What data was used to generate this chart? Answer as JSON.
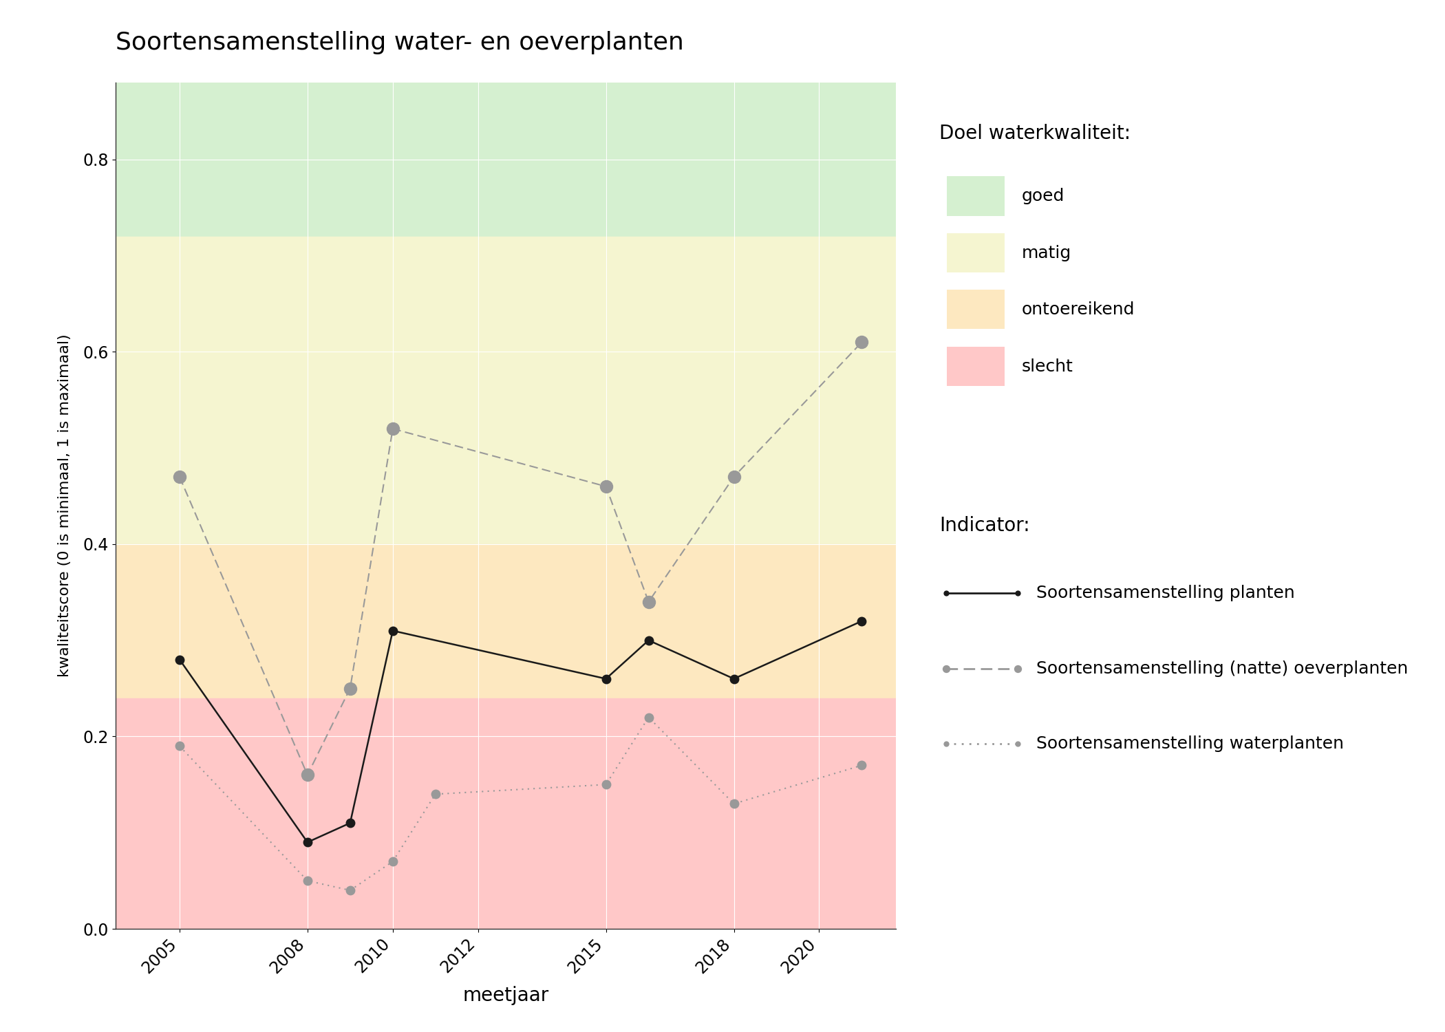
{
  "title": "Soortensamenstelling water- en oeverplanten",
  "xlabel": "meetjaar",
  "ylabel": "kwaliteitscore (0 is minimaal, 1 is maximaal)",
  "xlim": [
    2003.5,
    2021.8
  ],
  "ylim": [
    0.0,
    0.88
  ],
  "yticks": [
    0.0,
    0.2,
    0.4,
    0.6,
    0.8
  ],
  "xticks": [
    2005,
    2008,
    2010,
    2012,
    2015,
    2018,
    2020
  ],
  "background_color": "#ffffff",
  "zone_colors": {
    "goed": "#d5f0d0",
    "matig": "#f5f5d0",
    "ontoereikend": "#fde8c0",
    "slecht": "#ffc8c8"
  },
  "zone_bounds": {
    "goed_min": 0.72,
    "goed_max": 0.88,
    "matig_min": 0.4,
    "matig_max": 0.72,
    "ontoereikend_min": 0.24,
    "ontoereikend_max": 0.4,
    "slecht_min": 0.0,
    "slecht_max": 0.24
  },
  "line_planten": {
    "x": [
      2005,
      2008,
      2009,
      2010,
      2015,
      2016,
      2018,
      2021
    ],
    "y": [
      0.28,
      0.09,
      0.11,
      0.31,
      0.26,
      0.3,
      0.26,
      0.32
    ],
    "color": "#1a1a1a",
    "linestyle": "solid",
    "marker": "o",
    "markersize": 9,
    "linewidth": 1.8,
    "label": "Soortensamenstelling planten"
  },
  "line_oever": {
    "x": [
      2005,
      2008,
      2009,
      2010,
      2015,
      2016,
      2018,
      2021
    ],
    "y": [
      0.47,
      0.16,
      0.25,
      0.52,
      0.46,
      0.34,
      0.47,
      0.61
    ],
    "color": "#999999",
    "linestyle": "dashed",
    "marker": "o",
    "markersize": 13,
    "linewidth": 1.5,
    "label": "Soortensamenstelling (natte) oeverplanten"
  },
  "line_water": {
    "x": [
      2005,
      2008,
      2009,
      2010,
      2011,
      2015,
      2016,
      2018,
      2021
    ],
    "y": [
      0.19,
      0.05,
      0.04,
      0.07,
      0.14,
      0.15,
      0.22,
      0.13,
      0.17
    ],
    "color": "#999999",
    "linestyle": "dotted",
    "marker": "o",
    "markersize": 9,
    "linewidth": 1.5,
    "label": "Soortensamenstelling waterplanten"
  },
  "legend_quality_title": "Doel waterkwaliteit:",
  "legend_indicator_title": "Indicator:",
  "grid_color": "#ffffff",
  "grid_linewidth": 0.8
}
